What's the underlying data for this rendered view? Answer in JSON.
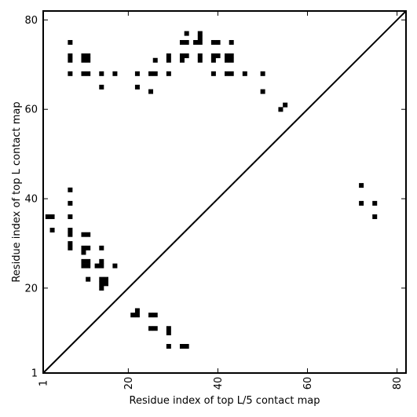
{
  "chart_data": {
    "type": "heatmap",
    "title": "",
    "xlabel": "Residue index of top L/5 contact map",
    "ylabel": "Residue index of top L contact map",
    "xlim": [
      1,
      82
    ],
    "ylim": [
      1,
      82
    ],
    "xticks": [
      1,
      20,
      40,
      60,
      80
    ],
    "yticks": [
      1,
      20,
      40,
      60,
      80
    ],
    "xtick_labels": [
      "1",
      "20",
      "40",
      "60",
      "80"
    ],
    "ytick_labels": [
      "1",
      "20",
      "40",
      "60",
      "80"
    ],
    "grid": false,
    "diagonal": true,
    "colors": {
      "contact": "#000000",
      "background": "#ffffff"
    },
    "upper_contacts": [
      [
        7,
        75
      ],
      [
        7,
        72
      ],
      [
        7,
        71
      ],
      [
        7,
        68
      ],
      [
        10,
        72
      ],
      [
        10,
        71
      ],
      [
        11,
        72
      ],
      [
        11,
        71
      ],
      [
        10,
        68
      ],
      [
        11,
        68
      ],
      [
        14,
        68
      ],
      [
        14,
        65
      ],
      [
        17,
        68
      ],
      [
        22,
        68
      ],
      [
        22,
        65
      ],
      [
        25,
        68
      ],
      [
        26,
        68
      ],
      [
        25,
        64
      ],
      [
        26,
        71
      ],
      [
        29,
        72
      ],
      [
        29,
        71
      ],
      [
        29,
        68
      ],
      [
        32,
        75
      ],
      [
        33,
        75
      ],
      [
        32,
        72
      ],
      [
        33,
        72
      ],
      [
        32,
        71
      ],
      [
        33,
        77
      ],
      [
        35,
        75
      ],
      [
        36,
        75
      ],
      [
        36,
        77
      ],
      [
        36,
        76
      ],
      [
        36,
        72
      ],
      [
        36,
        71
      ],
      [
        39,
        75
      ],
      [
        40,
        75
      ],
      [
        39,
        72
      ],
      [
        40,
        72
      ],
      [
        39,
        71
      ],
      [
        39,
        68
      ],
      [
        42,
        72
      ],
      [
        43,
        72
      ],
      [
        42,
        71
      ],
      [
        43,
        71
      ],
      [
        42,
        68
      ],
      [
        43,
        68
      ],
      [
        43,
        75
      ],
      [
        46,
        68
      ],
      [
        50,
        68
      ],
      [
        50,
        64
      ],
      [
        54,
        60
      ],
      [
        55,
        61
      ]
    ],
    "lower_contacts": [
      [
        2,
        36
      ],
      [
        3,
        36
      ],
      [
        3,
        33
      ],
      [
        7,
        42
      ],
      [
        7,
        39
      ],
      [
        7,
        36
      ],
      [
        7,
        33
      ],
      [
        7,
        32
      ],
      [
        7,
        30
      ],
      [
        7,
        29
      ],
      [
        10,
        32
      ],
      [
        11,
        32
      ],
      [
        10,
        29
      ],
      [
        11,
        29
      ],
      [
        10,
        28
      ],
      [
        10,
        26
      ],
      [
        11,
        26
      ],
      [
        10,
        25
      ],
      [
        11,
        25
      ],
      [
        11,
        22
      ],
      [
        13,
        25
      ],
      [
        14,
        25
      ],
      [
        14,
        26
      ],
      [
        14,
        29
      ],
      [
        14,
        22
      ],
      [
        15,
        22
      ],
      [
        14,
        21
      ],
      [
        15,
        21
      ],
      [
        14,
        20
      ],
      [
        17,
        25
      ],
      [
        21,
        14
      ],
      [
        22,
        14
      ],
      [
        22,
        15
      ],
      [
        25,
        14
      ],
      [
        26,
        14
      ],
      [
        25,
        11
      ],
      [
        26,
        11
      ],
      [
        29,
        11
      ],
      [
        29,
        10
      ],
      [
        29,
        7
      ],
      [
        32,
        7
      ],
      [
        33,
        7
      ],
      [
        72,
        43
      ],
      [
        72,
        39
      ],
      [
        75,
        39
      ],
      [
        75,
        36
      ]
    ]
  }
}
